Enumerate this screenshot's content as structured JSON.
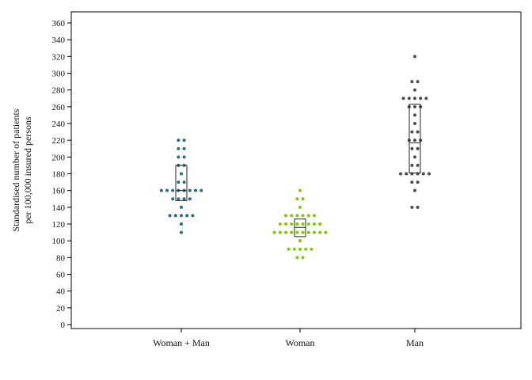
{
  "chart_data": {
    "type": "scatter",
    "subtype": "dot-plot-with-box",
    "title": "",
    "xlabel": "",
    "ylabel_lines": [
      "Standardised number of patients",
      "per 100,000 insured persons"
    ],
    "ylim": [
      0,
      370
    ],
    "yticks": [
      0,
      20,
      40,
      60,
      80,
      100,
      120,
      140,
      160,
      180,
      200,
      220,
      240,
      260,
      280,
      300,
      320,
      340,
      360
    ],
    "grid": false,
    "legend": "none",
    "categories": [
      "Woman + Man",
      "Woman",
      "Man"
    ],
    "series": [
      {
        "category": "Woman + Man",
        "color": "#2c6b77",
        "box": {
          "q1": 148,
          "median": 160,
          "q3": 190
        },
        "values": [
          220,
          220,
          210,
          210,
          200,
          200,
          190,
          190,
          180,
          170,
          170,
          160,
          160,
          160,
          160,
          160,
          160,
          160,
          160,
          150,
          150,
          150,
          150,
          140,
          130,
          130,
          130,
          130,
          130,
          120,
          110
        ]
      },
      {
        "category": "Woman",
        "color": "#86c11a",
        "box": {
          "q1": 105,
          "median": 116,
          "q3": 126
        },
        "values": [
          160,
          150,
          150,
          140,
          130,
          130,
          130,
          130,
          130,
          130,
          120,
          120,
          120,
          120,
          120,
          120,
          120,
          120,
          110,
          110,
          110,
          110,
          110,
          110,
          110,
          110,
          110,
          110,
          100,
          90,
          90,
          90,
          90,
          90,
          80,
          80
        ]
      },
      {
        "category": "Man",
        "color": "#4d4d4d",
        "box": {
          "q1": 181,
          "median": 217,
          "q3": 263
        },
        "values": [
          320,
          290,
          290,
          280,
          270,
          270,
          270,
          270,
          270,
          260,
          260,
          260,
          250,
          240,
          230,
          230,
          220,
          220,
          220,
          210,
          210,
          200,
          190,
          190,
          180,
          180,
          180,
          180,
          180,
          180,
          170,
          170,
          160,
          140,
          140
        ]
      }
    ]
  }
}
